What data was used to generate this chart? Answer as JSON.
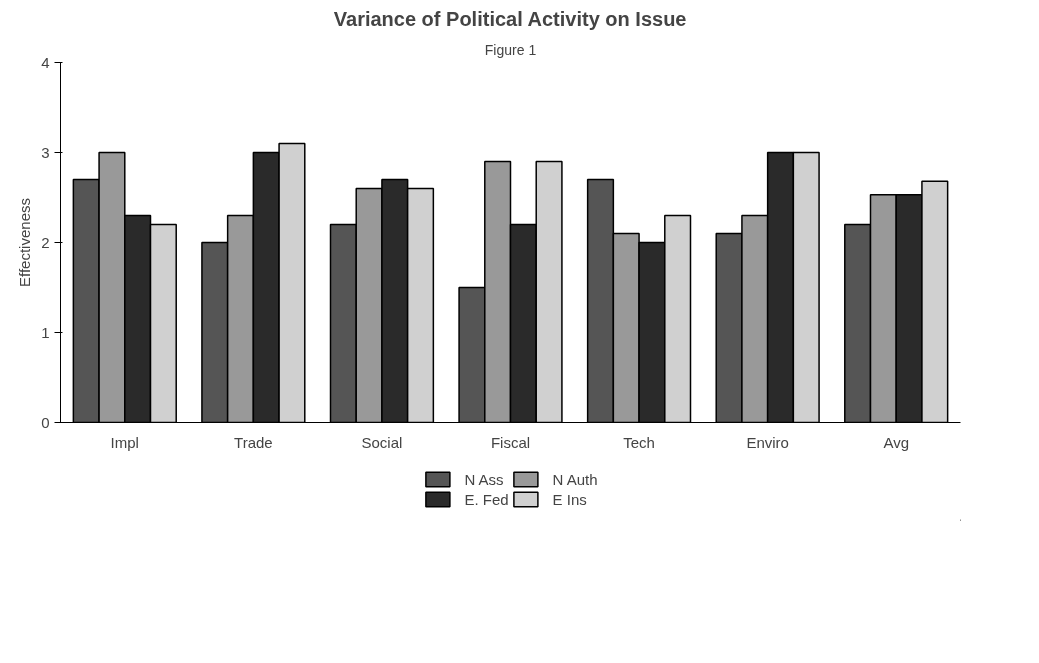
{
  "chart_data": {
    "type": "bar",
    "title": "Variance of Political Activity on Issue",
    "subtitle": "Figure 1",
    "ylabel": "Effectiveness",
    "categories": [
      "Impl",
      "Trade",
      "Social",
      "Fiscal",
      "Tech",
      "Enviro",
      "Avg"
    ],
    "series": [
      {
        "name": "N Ass",
        "color": "#555555",
        "values": [
          2.7,
          2.0,
          2.2,
          1.5,
          2.7,
          2.1,
          2.2
        ]
      },
      {
        "name": "N Auth",
        "color": "#999999",
        "values": [
          3.0,
          2.3,
          2.6,
          2.9,
          2.1,
          2.3,
          2.53
        ]
      },
      {
        "name": "E. Fed",
        "color": "#2a2a2a",
        "values": [
          2.3,
          3.0,
          2.7,
          2.2,
          2.0,
          3.0,
          2.53
        ]
      },
      {
        "name": "E Ins",
        "color": "#d0d0d0",
        "values": [
          2.2,
          3.1,
          2.6,
          2.9,
          2.3,
          3.0,
          2.68
        ]
      }
    ],
    "ylim": [
      0,
      4
    ],
    "yticks": [
      0,
      1,
      2,
      3,
      4
    ],
    "grid": false,
    "legend": "bottom"
  }
}
